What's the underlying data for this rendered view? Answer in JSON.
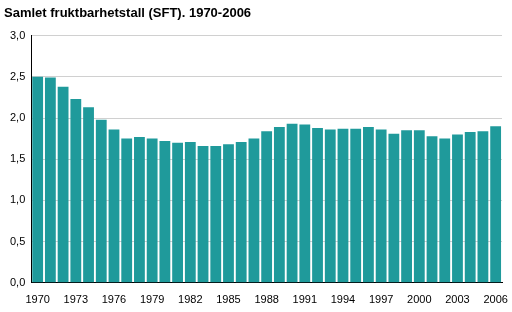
{
  "chart_data": {
    "type": "bar",
    "title": "Samlet fruktbarhetstall (SFT). 1970-2006",
    "categories": [
      "1970",
      null,
      null,
      "1973",
      null,
      null,
      "1976",
      null,
      null,
      "1979",
      null,
      null,
      "1982",
      null,
      null,
      "1985",
      null,
      null,
      "1988",
      null,
      null,
      "1991",
      null,
      null,
      "1994",
      null,
      null,
      "1997",
      null,
      null,
      "2000",
      null,
      null,
      "2003",
      null,
      null,
      "2006"
    ],
    "values": [
      2.5,
      2.49,
      2.38,
      2.23,
      2.13,
      1.98,
      1.86,
      1.75,
      1.77,
      1.75,
      1.72,
      1.7,
      1.71,
      1.66,
      1.66,
      1.68,
      1.71,
      1.75,
      1.84,
      1.89,
      1.93,
      1.92,
      1.88,
      1.86,
      1.87,
      1.87,
      1.89,
      1.86,
      1.81,
      1.85,
      1.85,
      1.78,
      1.75,
      1.8,
      1.83,
      1.84,
      1.9
    ],
    "color": "#1f9a9b",
    "ylim": [
      0,
      3
    ],
    "yticks": [
      {
        "value": 0,
        "label": "0,0"
      },
      {
        "value": 0.5,
        "label": "0,5"
      },
      {
        "value": 1,
        "label": "1,0"
      },
      {
        "value": 1.5,
        "label": "1,5"
      },
      {
        "value": 2,
        "label": "2,0"
      },
      {
        "value": 2.5,
        "label": "2,5"
      },
      {
        "value": 3,
        "label": "3,0"
      }
    ],
    "grid": true
  }
}
